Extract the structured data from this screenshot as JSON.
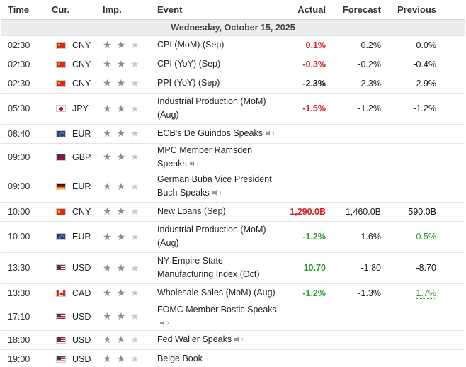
{
  "headers": {
    "time": "Time",
    "cur": "Cur.",
    "imp": "Imp.",
    "event": "Event",
    "actual": "Actual",
    "forecast": "Forecast",
    "previous": "Previous"
  },
  "date_label": "Wednesday, October 15, 2025",
  "colors": {
    "red": "#d31f1f",
    "green": "#2a9d2a",
    "date_band": "#ecedef",
    "star_on": "#8d8d8d",
    "star_off": "#c9c9c9"
  },
  "events": [
    {
      "time": "02:30",
      "cur": "CNY",
      "flag": "china-flag-icon",
      "imp": 2,
      "event": "CPI (MoM) (Sep)",
      "speech": false,
      "actual": "0.1%",
      "actual_color": "red",
      "forecast": "0.2%",
      "previous": "0.0%",
      "previous_style": "plain"
    },
    {
      "time": "02:30",
      "cur": "CNY",
      "flag": "china-flag-icon",
      "imp": 2,
      "event": "CPI (YoY) (Sep)",
      "speech": false,
      "actual": "-0.3%",
      "actual_color": "red",
      "forecast": "-0.2%",
      "previous": "-0.4%",
      "previous_style": "plain"
    },
    {
      "time": "02:30",
      "cur": "CNY",
      "flag": "china-flag-icon",
      "imp": 2,
      "event": "PPI (YoY) (Sep)",
      "speech": false,
      "actual": "-2.3%",
      "actual_color": "black",
      "forecast": "-2.3%",
      "previous": "-2.9%",
      "previous_style": "plain"
    },
    {
      "time": "05:30",
      "cur": "JPY",
      "flag": "japan-flag-icon",
      "imp": 2,
      "event": "Industrial Production (MoM) (Aug)",
      "speech": false,
      "actual": "-1.5%",
      "actual_color": "red",
      "forecast": "-1.2%",
      "previous": "-1.2%",
      "previous_style": "plain"
    },
    {
      "time": "08:40",
      "cur": "EUR",
      "flag": "eu-flag-icon",
      "imp": 2,
      "event": "ECB's De Guindos Speaks",
      "speech": true,
      "actual": "",
      "actual_color": "black",
      "forecast": "",
      "previous": "",
      "previous_style": "plain"
    },
    {
      "time": "09:00",
      "cur": "GBP",
      "flag": "uk-flag-icon",
      "imp": 2,
      "event": "MPC Member Ramsden Speaks",
      "speech": true,
      "actual": "",
      "actual_color": "black",
      "forecast": "",
      "previous": "",
      "previous_style": "plain"
    },
    {
      "time": "09:00",
      "cur": "EUR",
      "flag": "germany-flag-icon",
      "imp": 2,
      "event": "German Buba Vice President Buch Speaks",
      "speech": true,
      "actual": "",
      "actual_color": "black",
      "forecast": "",
      "previous": "",
      "previous_style": "plain"
    },
    {
      "time": "10:00",
      "cur": "CNY",
      "flag": "china-flag-icon",
      "imp": 2,
      "event": "New Loans (Sep)",
      "speech": false,
      "actual": "1,290.0B",
      "actual_color": "red",
      "forecast": "1,460.0B",
      "previous": "590.0B",
      "previous_style": "plain"
    },
    {
      "time": "10:00",
      "cur": "EUR",
      "flag": "eu-flag-icon",
      "imp": 2,
      "event": "Industrial Production (MoM) (Aug)",
      "speech": false,
      "actual": "-1.2%",
      "actual_color": "green",
      "forecast": "-1.6%",
      "previous": "0.5%",
      "previous_style": "green"
    },
    {
      "time": "13:30",
      "cur": "USD",
      "flag": "us-flag-icon",
      "imp": 2,
      "event": "NY Empire State Manufacturing Index (Oct)",
      "speech": false,
      "actual": "10.70",
      "actual_color": "green",
      "forecast": "-1.80",
      "previous": "-8.70",
      "previous_style": "plain"
    },
    {
      "time": "13:30",
      "cur": "CAD",
      "flag": "canada-flag-icon",
      "imp": 2,
      "event": "Wholesale Sales (MoM) (Aug)",
      "speech": false,
      "actual": "-1.2%",
      "actual_color": "green",
      "forecast": "-1.3%",
      "previous": "1.7%",
      "previous_style": "green"
    },
    {
      "time": "17:10",
      "cur": "USD",
      "flag": "us-flag-icon",
      "imp": 2,
      "event": "FOMC Member Bostic Speaks",
      "speech": true,
      "actual": "",
      "actual_color": "black",
      "forecast": "",
      "previous": "",
      "previous_style": "plain"
    },
    {
      "time": "18:00",
      "cur": "USD",
      "flag": "us-flag-icon",
      "imp": 2,
      "event": "Fed Waller Speaks",
      "speech": true,
      "actual": "",
      "actual_color": "black",
      "forecast": "",
      "previous": "",
      "previous_style": "plain"
    },
    {
      "time": "19:00",
      "cur": "USD",
      "flag": "us-flag-icon",
      "imp": 2,
      "event": "Beige Book",
      "speech": false,
      "actual": "",
      "actual_color": "black",
      "forecast": "",
      "previous": "",
      "previous_style": "plain"
    }
  ]
}
